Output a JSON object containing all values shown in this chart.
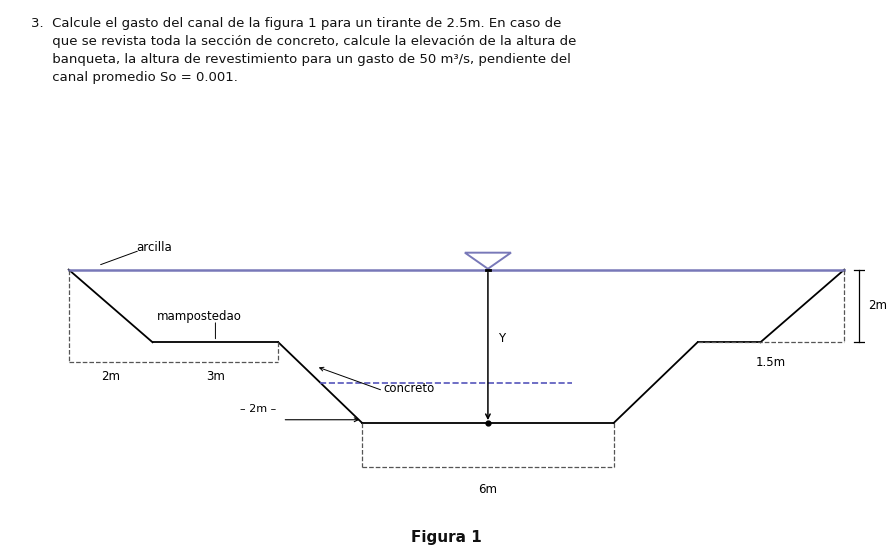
{
  "bg_color": "#faf5e4",
  "figure_bg": "#ffffff",
  "title_text": "Figura 1",
  "problem_line1": "3.  Calcule el gasto del canal de la figura 1 para un tirante de 2.5m. En caso de",
  "problem_line2": "     que se revista toda la sección de concreto, calcule la elevación de la altura de",
  "problem_line3": "     banqueta, la altura de revestimiento para un gasto de 50 m³/s, pendiente del",
  "problem_line4": "     canal promedio So = 0.001.",
  "channel_color": "#000000",
  "water_color": "#7878b8",
  "dashed_color": "#555555",
  "blue_dashed_color": "#5555bb",
  "label_arcilla": "arcilla",
  "label_mampostedao": "mampostedao",
  "label_concreto": "concreto",
  "label_Y": "Y",
  "label_2m_left": "2m",
  "label_3m": "3m",
  "label_2m_inner": "2m",
  "label_6m": "6m",
  "label_15m": "1.5m",
  "label_2m_right": "2m"
}
